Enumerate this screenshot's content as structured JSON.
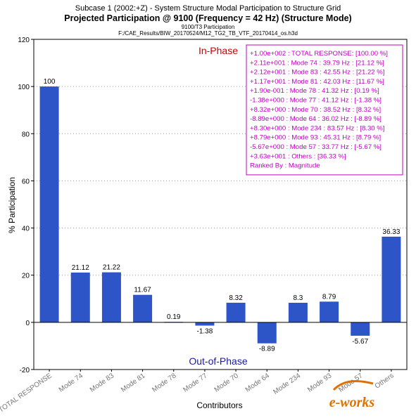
{
  "header": {
    "line1": "Subcase 1 (2002:+Z) - System Structure Modal Participation to Structure Grid",
    "line2": "Projected Participation @ 9100 (Frequency = 42 Hz) (Structure Mode)",
    "line3": "9100/T3 Participation",
    "line4": "F:/CAE_Results/BIW_20170524/M12_TG2_TB_VTF_20170414_os.h3d"
  },
  "chart_data": {
    "type": "bar",
    "xlabel": "Contributors",
    "ylabel": "% Participation",
    "ylim": [
      -20,
      120
    ],
    "yticks": [
      -20,
      0,
      20,
      40,
      60,
      80,
      100,
      120
    ],
    "grid": "horizontal dotted",
    "categories": [
      "TOTAL RESPONSE",
      "Mode 74",
      "Mode 83",
      "Mode 81",
      "Mode 78",
      "Mode 77",
      "Mode 70",
      "Mode 64",
      "Mode 234",
      "Mode 93",
      "Mode 57",
      "Others"
    ],
    "values": [
      100,
      21.12,
      21.22,
      11.67,
      0.19,
      -1.38,
      8.32,
      -8.89,
      8.3,
      8.79,
      -5.67,
      36.33
    ],
    "data_labels": [
      "100",
      "21.12",
      "21.22",
      "11.67",
      "0.19",
      "-1.38",
      "8.32",
      "-8.89",
      "8.3",
      "8.79",
      "-5.67",
      "36.33"
    ],
    "bar_color": "#2e55c8",
    "annotations": {
      "top": "In-Phase",
      "bottom": "Out-of-Phase",
      "top_color": "#cc0000",
      "bottom_color": "#1a1aa0"
    },
    "legend_position": "top-right",
    "legend_color": "#c000c0",
    "legend_lines": [
      "+1.00e+002 : TOTAL RESPONSE: [100.00 %]",
      "+2.11e+001 : Mode  74 : 39.79 Hz : [21.12 %]",
      "+2.12e+001 : Mode  83 : 42.55 Hz : [21.22 %]",
      "+1.17e+001 : Mode  81 : 42.03 Hz : [11.67 %]",
      "+1.90e-001 : Mode  78 : 41.32 Hz : [0.19 %]",
      "-1.38e+000 : Mode  77 : 41.12 Hz : [-1.38 %]",
      "+8.32e+000 : Mode  70 : 38.52 Hz : [8.32 %]",
      "-8.89e+000 : Mode  64 : 36.02 Hz : [-8.89 %]",
      "+8.30e+000 : Mode 234 : 83.57 Hz : [8.30 %]",
      "+8.79e+000 : Mode  93 : 45.31 Hz : [8.79 %]",
      "-5.67e+000 : Mode  57 : 33.77 Hz : [-5.67 %]",
      "+3.63e+001 : Others    : [36.33 %]",
      "Ranked By : Magnitude"
    ]
  },
  "watermark": {
    "text": "e-works",
    "color": "#e07000"
  }
}
